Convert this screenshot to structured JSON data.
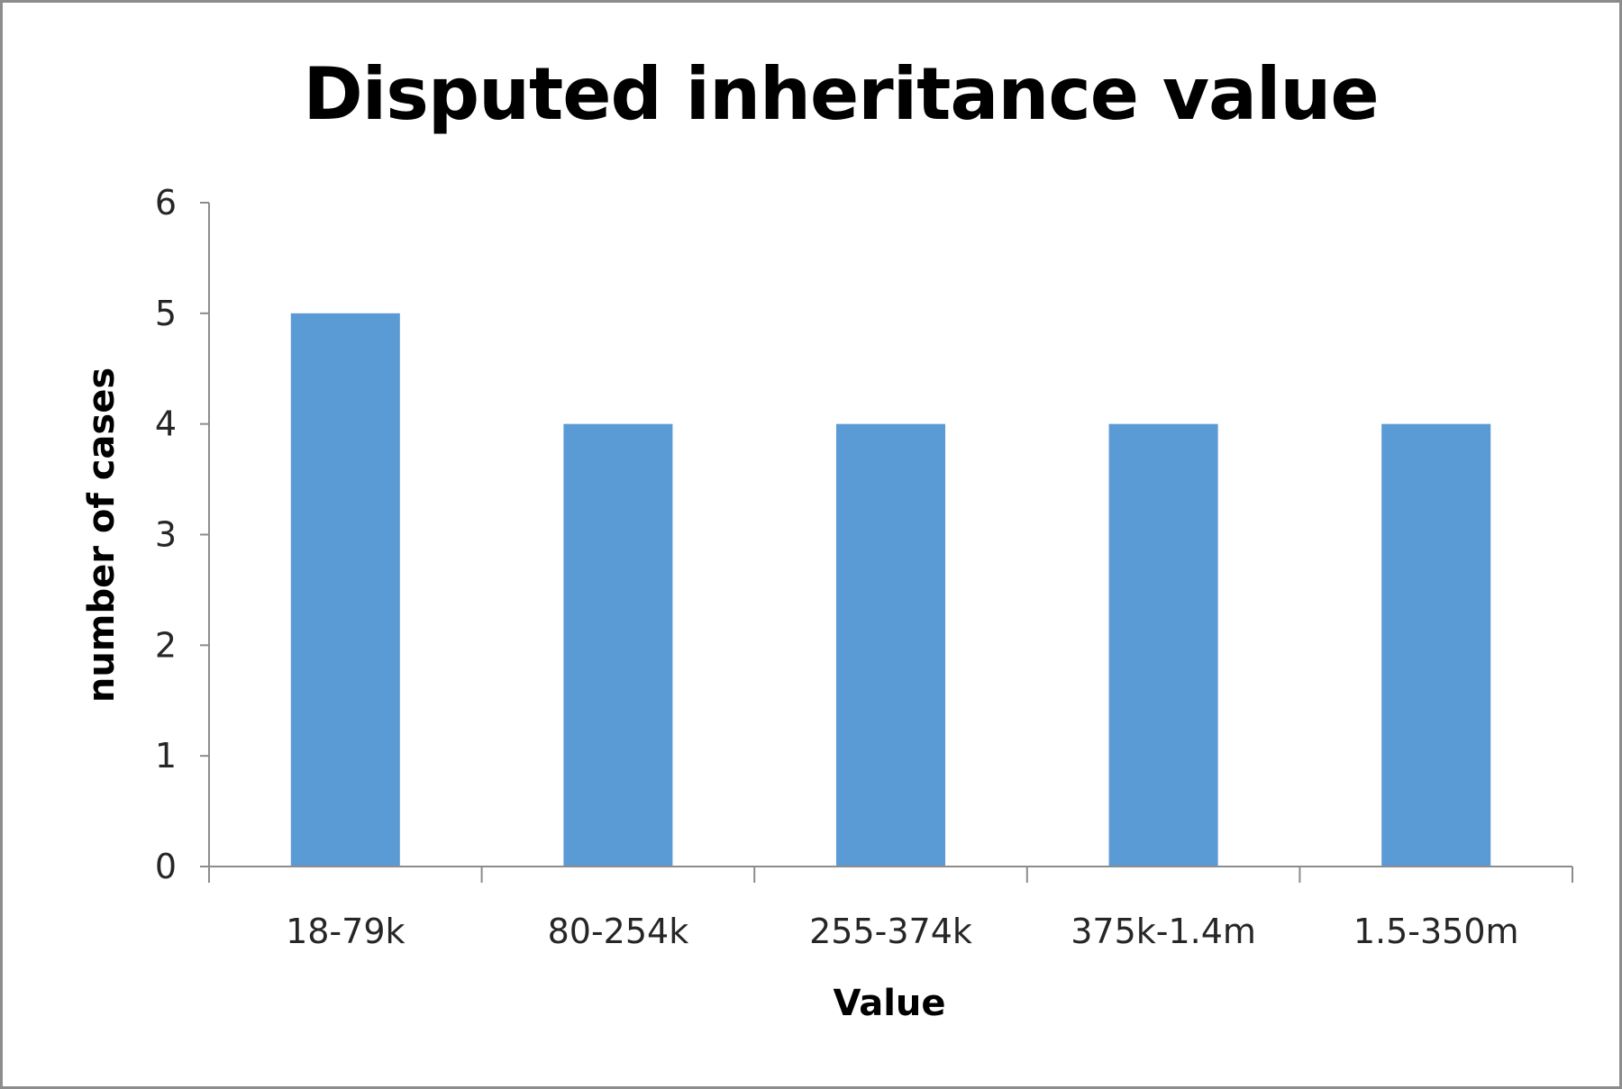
{
  "chart_data": {
    "type": "bar",
    "title": "Disputed inheritance value",
    "xlabel": "Value",
    "ylabel": "number of cases",
    "categories": [
      "18-79k",
      "80-254k",
      "255-374k",
      "375k-1.4m",
      "1.5-350m"
    ],
    "values": [
      5,
      4,
      4,
      4,
      4
    ],
    "ylim": [
      0,
      6
    ],
    "yticks": [
      "0",
      "1",
      "2",
      "3",
      "4",
      "5",
      "6"
    ],
    "grid": false,
    "legend": "none",
    "colors": {
      "bar": "#5b9bd5",
      "axis": "#8c8c8c",
      "text": "#262626"
    }
  }
}
